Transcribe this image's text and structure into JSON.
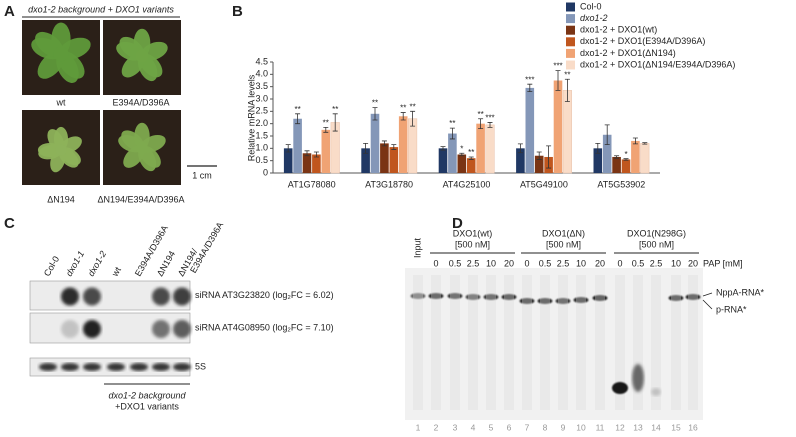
{
  "panels": {
    "a": "A",
    "b": "B",
    "c": "C",
    "d": "D"
  },
  "photos": {
    "header": "dxo1-2 background + DXO1 variants",
    "labels": [
      "wt",
      "E394A/D396A",
      "ΔN194",
      "ΔN194/E394A/D396A"
    ],
    "scale": "1 cm"
  },
  "chart_data": {
    "type": "bar",
    "y_label": "Relative mRNA levels",
    "categories": [
      "AT1G78080",
      "AT3G18780",
      "AT4G25100",
      "AT5G49100",
      "AT5G53902"
    ],
    "ylim": [
      0,
      4.5
    ],
    "yticks": [
      0,
      0.5,
      {
        "value": 1,
        "label": "1.0"
      },
      1.5,
      {
        "value": 2,
        "label": "2.0"
      },
      2.5,
      {
        "value": 3,
        "label": "3.0"
      },
      3.5,
      {
        "value": 4,
        "label": "4.0"
      },
      4.5
    ],
    "series": [
      {
        "name": "Col-0",
        "color": "#203864",
        "values": [
          1.0,
          1.0,
          1.0,
          1.0,
          1.0
        ],
        "errors": [
          0.15,
          0.2,
          0.07,
          0.18,
          0.2
        ],
        "stars": [
          null,
          null,
          null,
          null,
          null
        ]
      },
      {
        "name": "dxo1-2",
        "color": "#8497b8",
        "values": [
          2.2,
          2.4,
          1.6,
          3.45,
          1.55
        ],
        "errors": [
          0.2,
          0.25,
          0.22,
          0.15,
          0.4
        ],
        "stars": [
          "**",
          "**",
          "**",
          "***",
          null
        ]
      },
      {
        "name": "dxo1-2 + DXO1(wt)",
        "color": "#7a3414",
        "values": [
          0.8,
          1.2,
          0.75,
          0.7,
          0.65
        ],
        "errors": [
          0.1,
          0.1,
          0.05,
          0.15,
          0.05
        ],
        "stars": [
          null,
          null,
          "*",
          null,
          null
        ]
      },
      {
        "name": "dxo1-2 + DXO1(E394A/D396A)",
        "color": "#c0561e",
        "values": [
          0.75,
          1.05,
          0.6,
          0.65,
          0.55
        ],
        "errors": [
          0.1,
          0.1,
          0.05,
          0.45,
          0.03
        ],
        "stars": [
          null,
          null,
          "**",
          null,
          "*"
        ]
      },
      {
        "name": "dxo1-2 + DXO1(ΔN194)",
        "color": "#f0a374",
        "values": [
          1.75,
          2.3,
          2.0,
          3.75,
          1.3
        ],
        "errors": [
          0.1,
          0.15,
          0.2,
          0.4,
          0.12
        ],
        "stars": [
          "**",
          "**",
          "**",
          "***",
          null
        ]
      },
      {
        "name": "dxo1-2 + DXO1(ΔN194/E394A/D396A)",
        "color": "#f9dcc8",
        "values": [
          2.05,
          2.2,
          1.95,
          3.35,
          1.2
        ],
        "errors": [
          0.35,
          0.3,
          0.1,
          0.45,
          0.03
        ],
        "stars": [
          "**",
          "**",
          "***",
          "**",
          null
        ]
      }
    ]
  },
  "blot": {
    "lanes": [
      "Col-0",
      "dxo1-1",
      "dxo1-2",
      "wt",
      "E394A/D396A",
      "ΔN194",
      "ΔN194/\nE394A/D396A"
    ],
    "rows": [
      "siRNA AT3G23820 (log₂FC = 6.02)",
      "siRNA AT4G08950 (log₂FC = 7.10)",
      "5S"
    ],
    "footer": [
      "dxo1-2 background",
      "+DXO1 variants"
    ]
  },
  "gel": {
    "input": "Input",
    "groups": [
      {
        "name": "DXO1(wt)",
        "conc": "[500 nM]",
        "pap": [
          "0",
          "0.5",
          "2.5",
          "10",
          "20"
        ]
      },
      {
        "name": "DXO1(ΔN)",
        "conc": "[500 nM]",
        "pap": [
          "0",
          "0.5",
          "2.5",
          "10",
          "20"
        ]
      },
      {
        "name": "DXO1(N298G)",
        "conc": "[500 nM]",
        "pap": [
          "0",
          "0.5",
          "2.5",
          "10",
          "20"
        ]
      }
    ],
    "pap_label": "PAP [mM]",
    "bands": [
      "NppA-RNA*",
      "p-RNA*"
    ],
    "lanes": [
      "1",
      "2",
      "3",
      "4",
      "5",
      "6",
      "7",
      "8",
      "9",
      "10",
      "11",
      "12",
      "13",
      "14",
      "15",
      "16"
    ]
  }
}
